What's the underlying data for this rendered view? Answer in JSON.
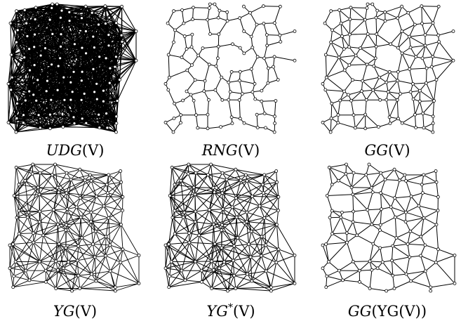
{
  "figure": {
    "panels": [
      {
        "id": "udg",
        "density": "very-dense",
        "caption": {
          "main": "UDG",
          "arg": "(V)",
          "sup": ""
        }
      },
      {
        "id": "rng",
        "density": "sparse",
        "caption": {
          "main": "RNG",
          "arg": "(V)",
          "sup": ""
        }
      },
      {
        "id": "gg",
        "density": "planar",
        "caption": {
          "main": "GG",
          "arg": "(V)",
          "sup": ""
        }
      },
      {
        "id": "yg",
        "density": "dense",
        "caption": {
          "main": "YG",
          "arg": "(V)",
          "sup": ""
        }
      },
      {
        "id": "ygs",
        "density": "medium",
        "caption": {
          "main": "YG",
          "arg": "(V)",
          "sup": "*"
        }
      },
      {
        "id": "ggyg",
        "density": "planar-sparse",
        "caption": {
          "main": "GG",
          "arg": "(YG(V))",
          "sup": ""
        }
      }
    ],
    "colors": {
      "edge": "#000000",
      "node_fill": "#ffffff",
      "node_stroke": "#000000",
      "background": "#ffffff"
    }
  }
}
